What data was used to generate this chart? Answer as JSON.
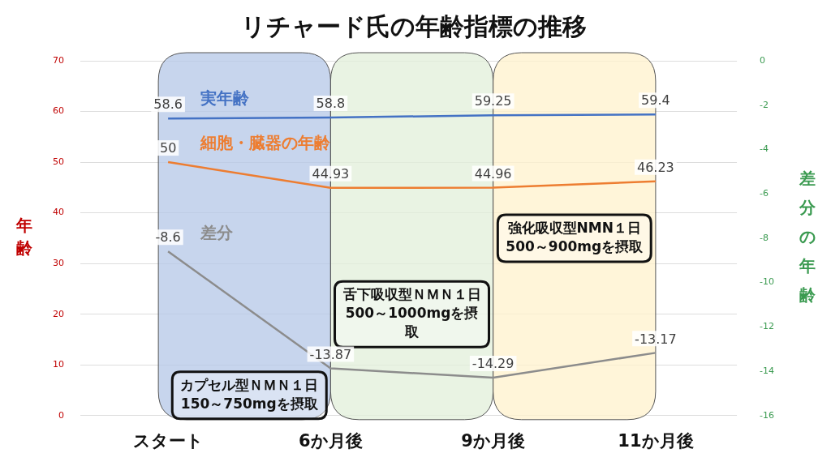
{
  "chart_data": {
    "type": "line",
    "title": "リチャード氏の年齢指標の推移",
    "ylabel": "年齢",
    "y2label": "差分の年齢",
    "categories": [
      "スタート",
      "6か月後",
      "9か月後",
      "11か月後"
    ],
    "series": [
      {
        "name": "実年齢",
        "color": "#4472c4",
        "values": [
          58.6,
          58.8,
          59.25,
          59.4
        ]
      },
      {
        "name": "細胞・臓器の年齢",
        "color": "#ed7d31",
        "values": [
          50,
          44.93,
          44.96,
          46.23
        ]
      },
      {
        "name": "差分",
        "color": "#8c8c8c",
        "axis": "y2",
        "values": [
          -8.6,
          -13.87,
          -14.29,
          -13.17
        ]
      }
    ],
    "ylim": [
      0,
      70
    ],
    "yticks": [
      0,
      10,
      20,
      30,
      40,
      50,
      60,
      70
    ],
    "y2lim": [
      -16,
      0
    ],
    "y2ticks": [
      -16,
      -14,
      -12,
      -10,
      -8,
      -6,
      -4,
      -2,
      0
    ],
    "bands": [
      {
        "axis": "x",
        "from": "スタート",
        "to": "6か月後",
        "color": "#b4c7e7",
        "label": "カプセル型ＮＭＮ１日150～750mgを摂取"
      },
      {
        "axis": "x",
        "from": "6か月後",
        "to": "9か月後",
        "color": "#e2efd9",
        "label": "舌下吸収型ＮＭＮ１日500～1000mgを摂取"
      },
      {
        "axis": "x",
        "from": "9か月後",
        "to": "11か月後",
        "color": "#fff2cc",
        "label": "強化吸収型NMN１日500～900mgを摂取"
      }
    ],
    "data_labels": true,
    "grid": "y",
    "legend": false,
    "marker": "none",
    "line_style": "solid"
  }
}
